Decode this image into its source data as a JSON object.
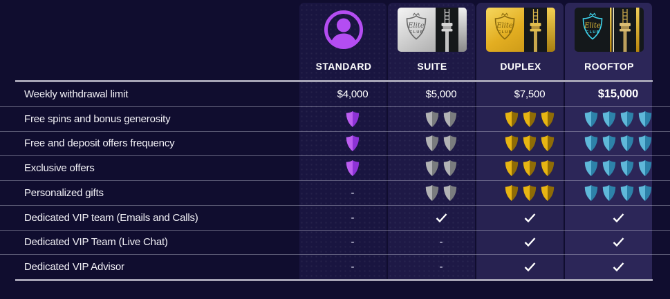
{
  "table": {
    "tiers": [
      {
        "label": "STANDARD",
        "icon": "person-circle-icon"
      },
      {
        "label": "SUITE",
        "icon": "suite-card-icon"
      },
      {
        "label": "DUPLEX",
        "icon": "duplex-card-icon"
      },
      {
        "label": "ROOFTOP",
        "icon": "rooftop-card-icon"
      }
    ],
    "rows": [
      {
        "label": "Weekly withdrawal limit",
        "values": [
          {
            "type": "text",
            "text": "$4,000"
          },
          {
            "type": "text",
            "text": "$5,000"
          },
          {
            "type": "text",
            "text": "$7,500"
          },
          {
            "type": "text",
            "text": "$15,000",
            "bold": true
          }
        ]
      },
      {
        "label": "Free spins and bonus generosity",
        "values": [
          {
            "type": "shields",
            "color": "purple",
            "count": 1
          },
          {
            "type": "shields",
            "color": "silver",
            "count": 2
          },
          {
            "type": "shields",
            "color": "gold",
            "count": 3
          },
          {
            "type": "shields",
            "color": "blue",
            "count": 4
          }
        ]
      },
      {
        "label": "Free and deposit offers frequency",
        "values": [
          {
            "type": "shields",
            "color": "purple",
            "count": 1
          },
          {
            "type": "shields",
            "color": "silver",
            "count": 2
          },
          {
            "type": "shields",
            "color": "gold",
            "count": 3
          },
          {
            "type": "shields",
            "color": "blue",
            "count": 4
          }
        ]
      },
      {
        "label": "Exclusive offers",
        "values": [
          {
            "type": "shields",
            "color": "purple",
            "count": 1
          },
          {
            "type": "shields",
            "color": "silver",
            "count": 2
          },
          {
            "type": "shields",
            "color": "gold",
            "count": 3
          },
          {
            "type": "shields",
            "color": "blue",
            "count": 4
          }
        ]
      },
      {
        "label": "Personalized gifts",
        "values": [
          {
            "type": "dash"
          },
          {
            "type": "shields",
            "color": "silver",
            "count": 2
          },
          {
            "type": "shields",
            "color": "gold",
            "count": 3
          },
          {
            "type": "shields",
            "color": "blue",
            "count": 4
          }
        ]
      },
      {
        "label": "Dedicated VIP team (Emails and Calls)",
        "values": [
          {
            "type": "dash"
          },
          {
            "type": "check"
          },
          {
            "type": "check"
          },
          {
            "type": "check"
          }
        ]
      },
      {
        "label": "Dedicated VIP Team (Live Chat)",
        "values": [
          {
            "type": "dash"
          },
          {
            "type": "dash"
          },
          {
            "type": "check"
          },
          {
            "type": "check"
          }
        ]
      },
      {
        "label": "Dedicated VIP Advisor",
        "values": [
          {
            "type": "dash"
          },
          {
            "type": "dash"
          },
          {
            "type": "check"
          },
          {
            "type": "check"
          }
        ]
      }
    ]
  },
  "card_emblem": {
    "line1": "Elite",
    "line2": "CLUB"
  },
  "dash_char": "-",
  "shield_colors": {
    "purple": {
      "light": "#bc5ef0",
      "dark": "#8d33d6"
    },
    "silver": {
      "light": "#b2b3b5",
      "dark": "#7a7c7e"
    },
    "gold": {
      "light": "#e7b513",
      "dark": "#8f6c06"
    },
    "blue": {
      "light": "#5fb8d9",
      "dark": "#2d82a9"
    }
  },
  "colors": {
    "page_background": "#100d2f",
    "divider": "#a6a4b6",
    "check": "#ffffff",
    "standard_accent": "#b44df2",
    "suite_accent": "#cfcfcf",
    "duplex_accent": "#e3ae21",
    "rooftop_accent": "#3fd6ef"
  }
}
